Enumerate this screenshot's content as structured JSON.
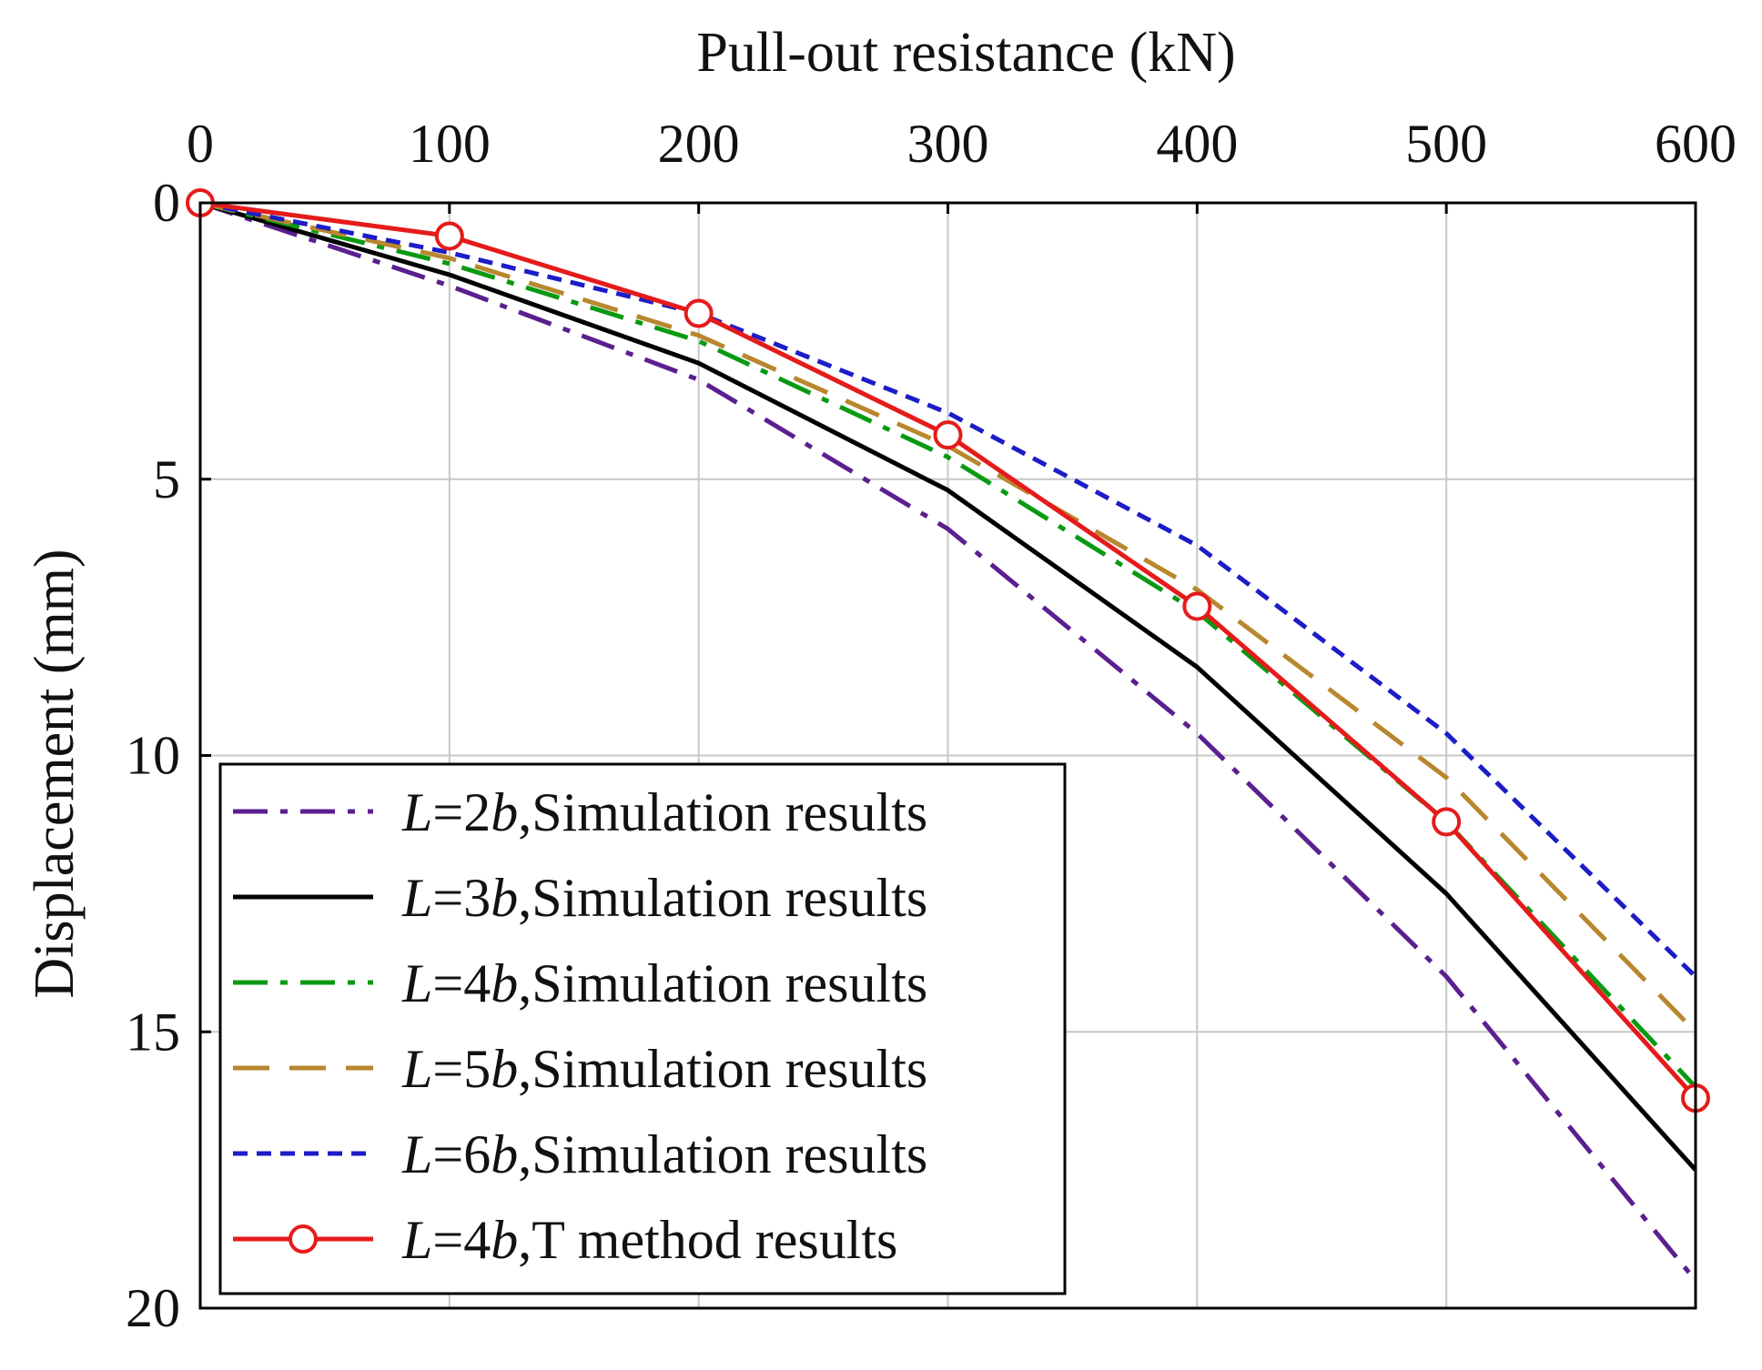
{
  "chart_data": {
    "type": "line",
    "xlabel": "Pull-out resistance (kN)",
    "ylabel": "Displacement (mm)",
    "xlim": [
      0,
      600
    ],
    "ylim": [
      0,
      20
    ],
    "y_inverted": true,
    "x_axis_position": "top",
    "grid": true,
    "legend_position": "bottom-left",
    "xticks": [
      "0",
      "100",
      "200",
      "300",
      "400",
      "500",
      "600"
    ],
    "yticks": [
      "0",
      "5",
      "10",
      "15",
      "20"
    ],
    "x": [
      0,
      100,
      200,
      300,
      400,
      500,
      600
    ],
    "series": [
      {
        "id": "L2",
        "prefix": "L",
        "mid": "=2",
        "b": "b",
        "suffix": ",Simulation results",
        "color": "#5b1f8f",
        "dash": "dashdot",
        "marker": "none",
        "values": [
          0,
          1.5,
          3.2,
          5.9,
          9.6,
          14.0,
          19.5
        ]
      },
      {
        "id": "L3",
        "prefix": "L",
        "mid": "=3",
        "b": "b",
        "suffix": ",Simulation results",
        "color": "#000000",
        "dash": "solid",
        "marker": "none",
        "values": [
          0,
          1.3,
          2.9,
          5.2,
          8.4,
          12.5,
          17.5
        ]
      },
      {
        "id": "L4",
        "prefix": "L",
        "mid": "=4",
        "b": "b",
        "suffix": ",Simulation results",
        "color": "#0a9a12",
        "dash": "dashdot",
        "marker": "none",
        "values": [
          0,
          1.1,
          2.5,
          4.6,
          7.4,
          11.2,
          16.0
        ]
      },
      {
        "id": "L5",
        "prefix": "L",
        "mid": "=5",
        "b": "b",
        "suffix": ",Simulation results",
        "color": "#b8872e",
        "dash": "dash",
        "marker": "none",
        "values": [
          0,
          1.0,
          2.4,
          4.4,
          7.0,
          10.4,
          15.0
        ]
      },
      {
        "id": "L6",
        "prefix": "L",
        "mid": "=6",
        "b": "b",
        "suffix": ",Simulation results",
        "color": "#1c1cc8",
        "dash": "shortdash",
        "marker": "none",
        "values": [
          0,
          0.9,
          2.0,
          3.8,
          6.2,
          9.6,
          14.0
        ]
      },
      {
        "id": "T4",
        "prefix": "L",
        "mid": "=4",
        "b": "b",
        "suffix": ",T method results",
        "color": "#e51b1b",
        "dash": "solid",
        "marker": "circle",
        "values": [
          0,
          0.6,
          2.0,
          4.2,
          7.3,
          11.2,
          16.2
        ]
      }
    ]
  }
}
